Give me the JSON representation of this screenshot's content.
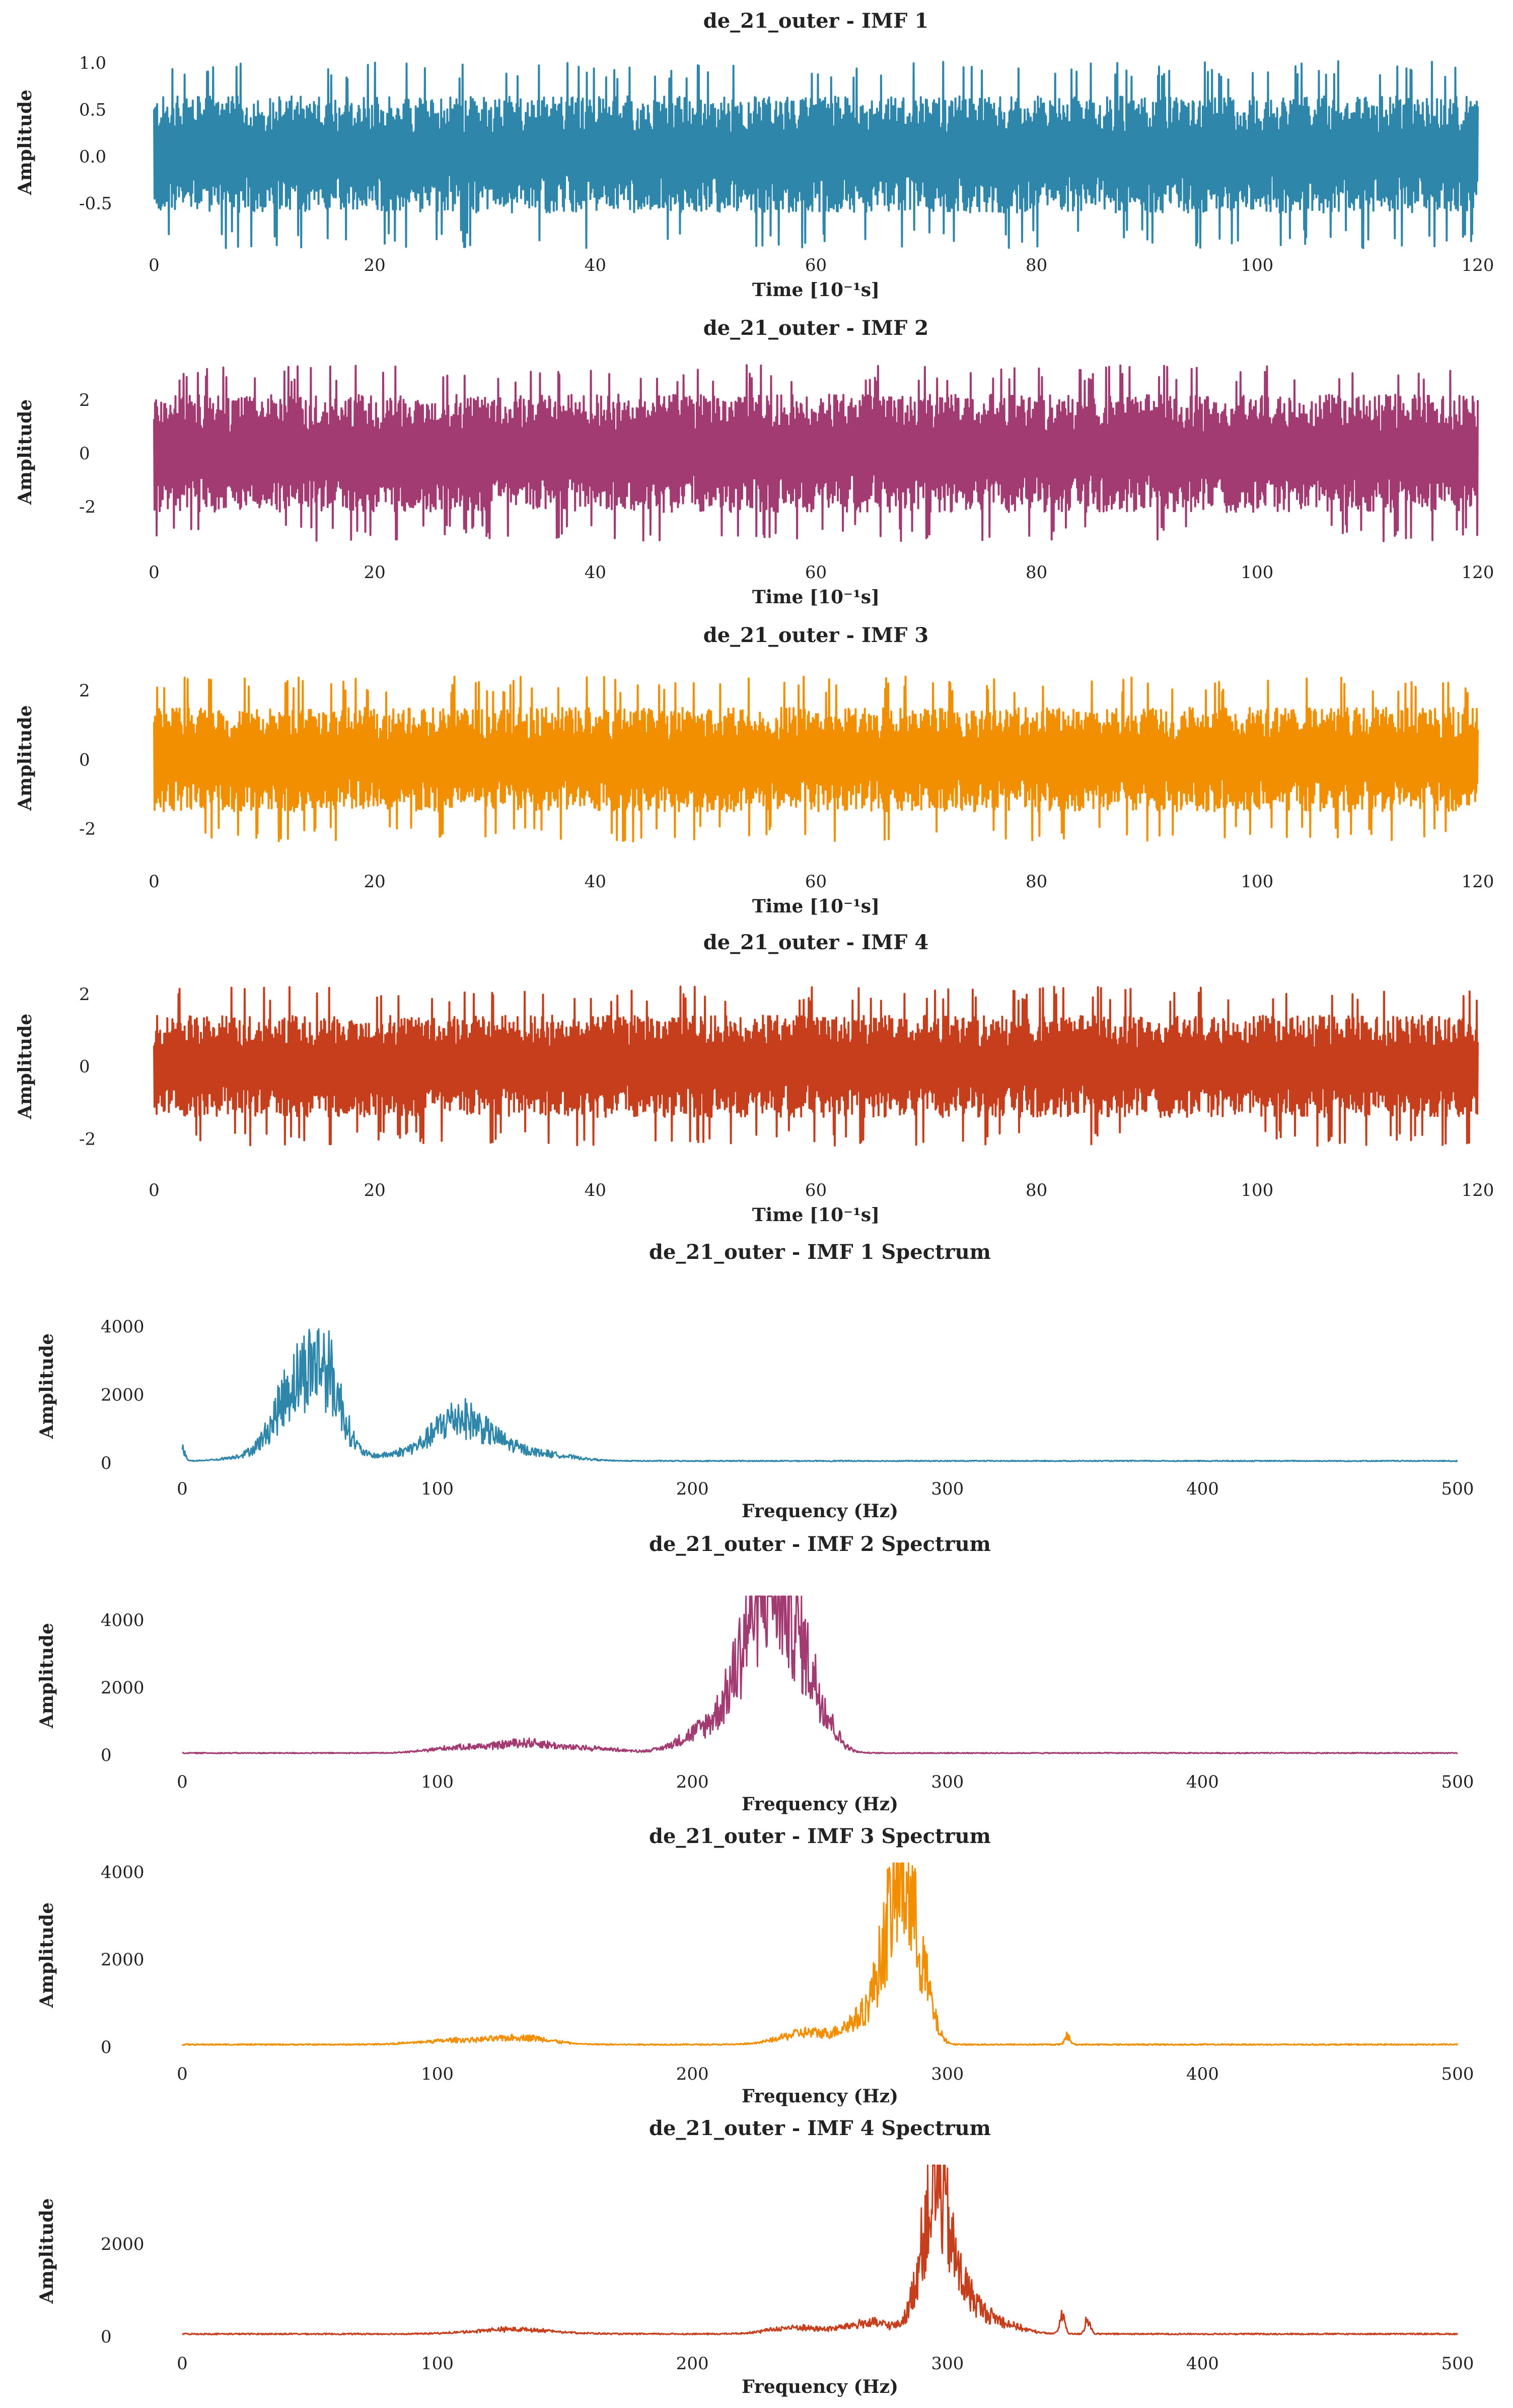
{
  "chart_data": [
    {
      "type": "line",
      "title": "de_21_outer - IMF 1",
      "xlabel": "Time [10⁻¹s]",
      "ylabel": "Amplitude",
      "xlim": [
        0,
        120
      ],
      "ylim": [
        -0.75,
        1.05
      ],
      "x_ticks": [
        "0",
        "20",
        "40",
        "60",
        "80",
        "100",
        "120"
      ],
      "y_ticks": [
        "-0.5",
        "0.0",
        "0.5",
        "1.0"
      ],
      "series": [
        {
          "color": "#2e86ab",
          "amplitude_peak": 1.0,
          "amplitude_typical": 0.62,
          "spike_count": 420
        }
      ],
      "grid": false
    },
    {
      "type": "line",
      "title": "de_21_outer - IMF 2",
      "xlabel": "Time [10⁻¹s]",
      "ylabel": "Amplitude",
      "xlim": [
        0,
        120
      ],
      "ylim": [
        -3.3,
        3.4
      ],
      "x_ticks": [
        "0",
        "20",
        "40",
        "60",
        "80",
        "100",
        "120"
      ],
      "y_ticks": [
        "-2",
        "0",
        "2"
      ],
      "series": [
        {
          "color": "#a23b72",
          "amplitude_peak": 3.3,
          "amplitude_typical": 2.2,
          "spike_count": 420
        }
      ],
      "grid": false
    },
    {
      "type": "line",
      "title": "de_21_outer - IMF 3",
      "xlabel": "Time [10⁻¹s]",
      "ylabel": "Amplitude",
      "xlim": [
        0,
        120
      ],
      "ylim": [
        -2.5,
        2.6
      ],
      "x_ticks": [
        "0",
        "20",
        "40",
        "60",
        "80",
        "100",
        "120"
      ],
      "y_ticks": [
        "-2",
        "0",
        "2"
      ],
      "series": [
        {
          "color": "#f18f01",
          "amplitude_peak": 2.4,
          "amplitude_typical": 1.5,
          "spike_count": 420
        }
      ],
      "grid": false
    },
    {
      "type": "line",
      "title": "de_21_outer - IMF 4",
      "xlabel": "Time [10⁻¹s]",
      "ylabel": "Amplitude",
      "xlim": [
        0,
        120
      ],
      "ylim": [
        -2.4,
        2.4
      ],
      "x_ticks": [
        "0",
        "20",
        "40",
        "60",
        "80",
        "100",
        "120"
      ],
      "y_ticks": [
        "-2",
        "0",
        "2"
      ],
      "series": [
        {
          "color": "#c73e1d",
          "amplitude_peak": 2.2,
          "amplitude_typical": 1.4,
          "spike_count": 420
        }
      ],
      "grid": false
    },
    {
      "type": "line",
      "title": "de_21_outer - IMF 1 Spectrum",
      "xlabel": "Frequency (Hz)",
      "ylabel": "Amplitude",
      "xlim": [
        0,
        500
      ],
      "ylim": [
        0,
        4500
      ],
      "x_ticks": [
        "0",
        "100",
        "200",
        "300",
        "400",
        "500"
      ],
      "y_ticks": [
        "0",
        "2000",
        "4000"
      ],
      "series": [
        {
          "color": "#2e86ab"
        }
      ],
      "peaks": [
        {
          "freq": 0,
          "amp": 500,
          "width": 1
        },
        {
          "freq": 30,
          "amp": 250,
          "width": 10
        },
        {
          "freq": 50,
          "amp": 2300,
          "width": 9
        },
        {
          "freq": 57,
          "amp": 2100,
          "width": 6
        },
        {
          "freq": 42,
          "amp": 1400,
          "width": 7
        },
        {
          "freq": 95,
          "amp": 450,
          "width": 14
        },
        {
          "freq": 107,
          "amp": 1300,
          "width": 8
        },
        {
          "freq": 120,
          "amp": 750,
          "width": 9
        },
        {
          "freq": 140,
          "amp": 300,
          "width": 12
        }
      ],
      "grid": false
    },
    {
      "type": "line",
      "title": "de_21_outer - IMF 2 Spectrum",
      "xlabel": "Frequency (Hz)",
      "ylabel": "Amplitude",
      "xlim": [
        0,
        500
      ],
      "ylim": [
        0,
        4700
      ],
      "x_ticks": [
        "0",
        "100",
        "200",
        "300",
        "400",
        "500"
      ],
      "y_ticks": [
        "0",
        "2000",
        "4000"
      ],
      "series": [
        {
          "color": "#a23b72"
        }
      ],
      "peaks": [
        {
          "freq": 110,
          "amp": 250,
          "width": 12
        },
        {
          "freq": 135,
          "amp": 400,
          "width": 10
        },
        {
          "freq": 160,
          "amp": 200,
          "width": 12
        },
        {
          "freq": 205,
          "amp": 900,
          "width": 10
        },
        {
          "freq": 222,
          "amp": 3000,
          "width": 8
        },
        {
          "freq": 230,
          "amp": 4600,
          "width": 7
        },
        {
          "freq": 240,
          "amp": 3600,
          "width": 7
        },
        {
          "freq": 250,
          "amp": 1200,
          "width": 6
        }
      ],
      "grid": false
    },
    {
      "type": "line",
      "title": "de_21_outer - IMF 3 Spectrum",
      "xlabel": "Frequency (Hz)",
      "ylabel": "Amplitude",
      "xlim": [
        0,
        500
      ],
      "ylim": [
        0,
        4200
      ],
      "x_ticks": [
        "0",
        "100",
        "200",
        "300",
        "400",
        "500"
      ],
      "y_ticks": [
        "0",
        "2000",
        "4000"
      ],
      "series": [
        {
          "color": "#f18f01"
        }
      ],
      "peaks": [
        {
          "freq": 110,
          "amp": 150,
          "width": 15
        },
        {
          "freq": 135,
          "amp": 200,
          "width": 10
        },
        {
          "freq": 245,
          "amp": 400,
          "width": 10
        },
        {
          "freq": 265,
          "amp": 700,
          "width": 6
        },
        {
          "freq": 277,
          "amp": 3000,
          "width": 5
        },
        {
          "freq": 283,
          "amp": 3800,
          "width": 4
        },
        {
          "freq": 290,
          "amp": 2000,
          "width": 4
        },
        {
          "freq": 347,
          "amp": 300,
          "width": 1
        }
      ],
      "grid": false
    },
    {
      "type": "line",
      "title": "de_21_outer - IMF 4 Spectrum",
      "xlabel": "Frequency (Hz)",
      "ylabel": "Amplitude",
      "xlim": [
        0,
        500
      ],
      "ylim": [
        0,
        3700
      ],
      "x_ticks": [
        "0",
        "100",
        "200",
        "300",
        "400",
        "500"
      ],
      "y_ticks": [
        "0",
        "2000"
      ],
      "series": [
        {
          "color": "#c73e1d"
        }
      ],
      "peaks": [
        {
          "freq": 130,
          "amp": 150,
          "width": 15
        },
        {
          "freq": 240,
          "amp": 200,
          "width": 10
        },
        {
          "freq": 270,
          "amp": 350,
          "width": 10
        },
        {
          "freq": 290,
          "amp": 1500,
          "width": 4
        },
        {
          "freq": 296,
          "amp": 3600,
          "width": 4
        },
        {
          "freq": 303,
          "amp": 1400,
          "width": 6
        },
        {
          "freq": 315,
          "amp": 500,
          "width": 10
        },
        {
          "freq": 345,
          "amp": 600,
          "width": 1
        },
        {
          "freq": 355,
          "amp": 500,
          "width": 1
        }
      ],
      "grid": false
    }
  ]
}
